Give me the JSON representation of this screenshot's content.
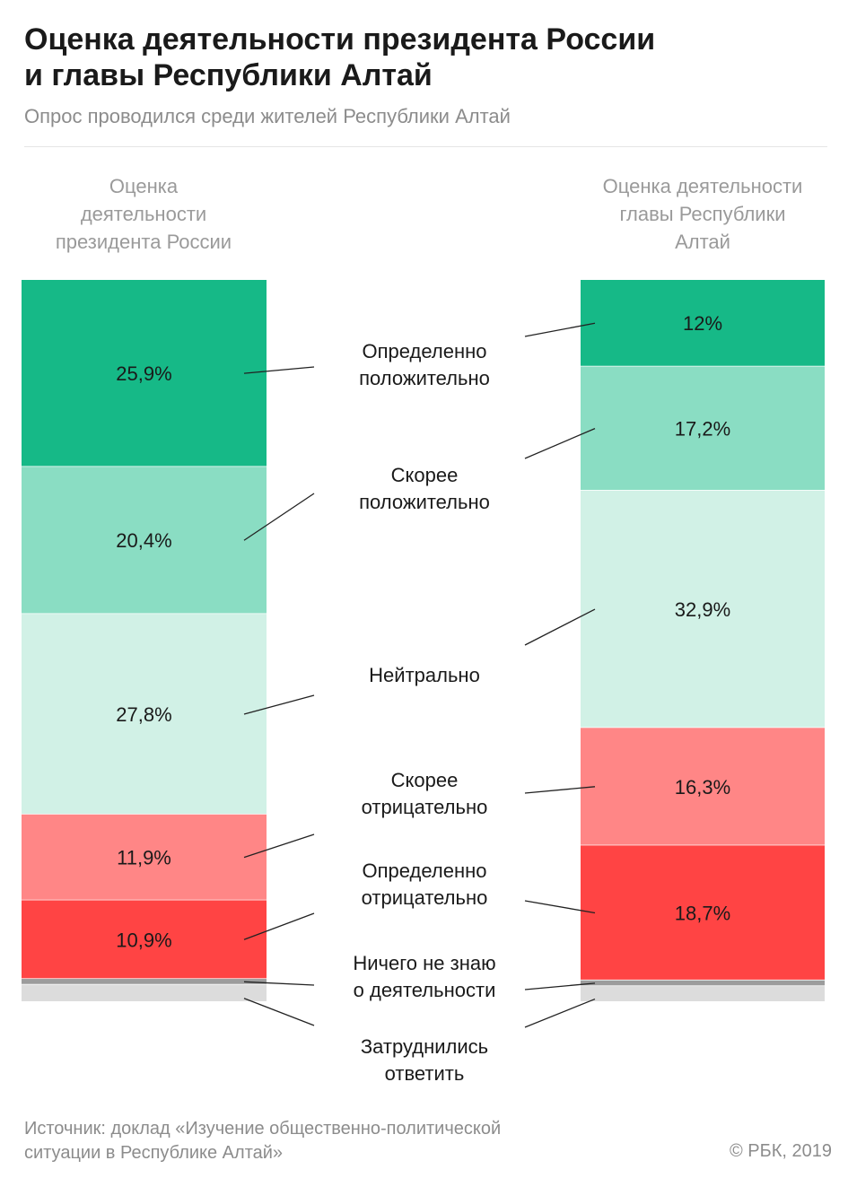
{
  "title_line1": "Оценка деятельности президента России",
  "title_line2": "и главы Республики Алтай",
  "subtitle": "Опрос проводился среди жителей Республики Алтай",
  "left_header": [
    "Оценка",
    "деятельности",
    "президента России"
  ],
  "right_header": [
    "Оценка деятельности",
    "главы Республики",
    "Алтай"
  ],
  "source_line1": "Источник: доклад «Изучение общественно-политической",
  "source_line2": "ситуации в Республике Алтай»",
  "credit": "© РБК, 2019",
  "colors": {
    "definitely_positive": "#16b987",
    "rather_positive": "#8addc3",
    "neutral": "#d1f1e6",
    "rather_negative": "#ff8686",
    "definitely_negative": "#ff4444",
    "know_nothing": "#9c9c9c",
    "hard_to_answer": "#dcdcdc"
  },
  "chart_data": {
    "type": "bar",
    "stacked": true,
    "ylim": [
      0,
      100
    ],
    "categories": [
      "Оценка деятельности президента России",
      "Оценка деятельности главы Республики Алтай"
    ],
    "series": [
      {
        "name": "Определенно положительно",
        "label_lines": [
          "Определенно",
          "положительно"
        ],
        "values": [
          25.9,
          12
        ],
        "labels": [
          "25,9%",
          "12%"
        ],
        "color": "#16b987"
      },
      {
        "name": "Скорее положительно",
        "label_lines": [
          "Скорее",
          "положительно"
        ],
        "values": [
          20.4,
          17.2
        ],
        "labels": [
          "20,4%",
          "17,2%"
        ],
        "color": "#8addc3"
      },
      {
        "name": "Нейтрально",
        "label_lines": [
          "Нейтрально"
        ],
        "values": [
          27.8,
          32.9
        ],
        "labels": [
          "27,8%",
          "32,9%"
        ],
        "color": "#d1f1e6"
      },
      {
        "name": "Скорее отрицательно",
        "label_lines": [
          "Скорее",
          "отрицательно"
        ],
        "values": [
          11.9,
          16.3
        ],
        "labels": [
          "11,9%",
          "16,3%"
        ],
        "color": "#ff8686"
      },
      {
        "name": "Определенно отрицательно",
        "label_lines": [
          "Определенно",
          "отрицательно"
        ],
        "values": [
          10.9,
          18.7
        ],
        "labels": [
          "10,9%",
          "18,7%"
        ],
        "color": "#ff4444"
      },
      {
        "name": "Ничего не знаю о деятельности",
        "label_lines": [
          "Ничего не знаю",
          "о деятельности"
        ],
        "values": [
          0.8,
          0.8
        ],
        "labels": [
          "",
          ""
        ],
        "color": "#9c9c9c"
      },
      {
        "name": "Затруднились ответить",
        "label_lines": [
          "Затруднились",
          "ответить"
        ],
        "values": [
          2.3,
          2.1
        ],
        "labels": [
          "",
          ""
        ],
        "color": "#dcdcdc"
      }
    ]
  }
}
